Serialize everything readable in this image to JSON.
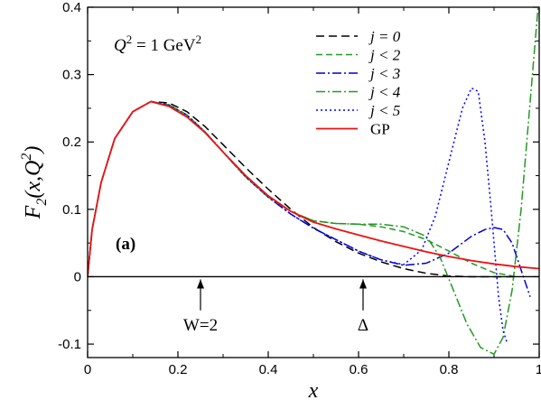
{
  "chart_data": {
    "type": "line",
    "xlabel": "x",
    "ylabel": "F2(x,Q2)",
    "ylabel_parts": {
      "main": "F",
      "sub2": "2",
      "open": "(x,Q",
      "sup2": "2",
      "close": ")"
    },
    "xlim": [
      0,
      1
    ],
    "ylim": [
      -0.12,
      0.4
    ],
    "xticks": [
      0,
      0.2,
      0.4,
      0.6,
      0.8,
      1
    ],
    "xtick_labels": [
      "0",
      "0.2",
      "0.4",
      "0.6",
      "0.8",
      "1"
    ],
    "yticks": [
      -0.1,
      0,
      0.1,
      0.2,
      0.3,
      0.4
    ],
    "ytick_labels": [
      "-0.1",
      "0",
      "0.1",
      "0.2",
      "0.3",
      "0.4"
    ],
    "q2_label": {
      "q": "Q",
      "sup": "2",
      "rest": " = 1 GeV",
      "sup2": "2"
    },
    "panel_label": "(a)",
    "legend_position": "top-right",
    "annotations": [
      {
        "text": "W=2",
        "x": 0.25
      },
      {
        "text": "Δ",
        "x": 0.61
      }
    ],
    "series": [
      {
        "name": "j = 0",
        "color": "#000000",
        "dash": "9,5",
        "x": [
          0,
          0.01,
          0.03,
          0.06,
          0.1,
          0.14,
          0.18,
          0.22,
          0.26,
          0.3,
          0.35,
          0.4,
          0.45,
          0.5,
          0.55,
          0.6,
          0.65,
          0.7,
          0.75,
          0.8,
          0.85,
          0.9,
          0.95
        ],
        "y": [
          0,
          0.07,
          0.14,
          0.205,
          0.245,
          0.26,
          0.258,
          0.245,
          0.223,
          0.196,
          0.162,
          0.13,
          0.1,
          0.073,
          0.052,
          0.035,
          0.022,
          0.012,
          0.005,
          0.001,
          0,
          0,
          0
        ]
      },
      {
        "name": "j < 2",
        "color": "#229922",
        "dash": "7,4",
        "x": [
          0,
          0.01,
          0.03,
          0.06,
          0.1,
          0.14,
          0.18,
          0.22,
          0.26,
          0.3,
          0.35,
          0.4,
          0.45,
          0.5,
          0.55,
          0.6,
          0.65,
          0.7,
          0.75,
          0.8,
          0.85,
          0.9,
          0.95
        ],
        "y": [
          0,
          0.07,
          0.14,
          0.205,
          0.245,
          0.26,
          0.255,
          0.24,
          0.215,
          0.185,
          0.148,
          0.118,
          0.097,
          0.083,
          0.079,
          0.078,
          0.074,
          0.067,
          0.055,
          0.038,
          0.02,
          0.006,
          0
        ]
      },
      {
        "name": "j < 3",
        "color": "#0000cc",
        "dash": "10,3,2,3",
        "x": [
          0,
          0.01,
          0.03,
          0.06,
          0.1,
          0.14,
          0.18,
          0.22,
          0.26,
          0.3,
          0.35,
          0.4,
          0.45,
          0.5,
          0.55,
          0.6,
          0.65,
          0.7,
          0.75,
          0.8,
          0.85,
          0.88,
          0.9,
          0.92,
          0.94,
          0.96,
          0.98
        ],
        "y": [
          0,
          0.07,
          0.14,
          0.205,
          0.245,
          0.26,
          0.255,
          0.24,
          0.215,
          0.185,
          0.148,
          0.118,
          0.093,
          0.072,
          0.055,
          0.038,
          0.025,
          0.017,
          0.02,
          0.035,
          0.06,
          0.07,
          0.073,
          0.07,
          0.05,
          0.01,
          -0.03
        ]
      },
      {
        "name": "j < 4",
        "color": "#229922",
        "dash": "10,3,2,3",
        "x": [
          0,
          0.01,
          0.03,
          0.06,
          0.1,
          0.14,
          0.18,
          0.22,
          0.26,
          0.3,
          0.35,
          0.4,
          0.45,
          0.5,
          0.55,
          0.6,
          0.65,
          0.7,
          0.75,
          0.78,
          0.81,
          0.84,
          0.87,
          0.9,
          0.92,
          0.94,
          0.96,
          0.98,
          1.0
        ],
        "y": [
          0,
          0.07,
          0.14,
          0.205,
          0.245,
          0.26,
          0.255,
          0.24,
          0.215,
          0.185,
          0.148,
          0.118,
          0.097,
          0.083,
          0.079,
          0.078,
          0.078,
          0.074,
          0.06,
          0.03,
          -0.02,
          -0.07,
          -0.105,
          -0.115,
          -0.09,
          -0.02,
          0.1,
          0.26,
          0.42
        ]
      },
      {
        "name": "j < 5",
        "color": "#0000ff",
        "dash": "2,3",
        "x": [
          0,
          0.01,
          0.03,
          0.06,
          0.1,
          0.14,
          0.18,
          0.22,
          0.26,
          0.3,
          0.35,
          0.4,
          0.45,
          0.5,
          0.55,
          0.6,
          0.65,
          0.7,
          0.74,
          0.77,
          0.8,
          0.83,
          0.85,
          0.865,
          0.88,
          0.895,
          0.91,
          0.92,
          0.93
        ],
        "y": [
          0,
          0.07,
          0.14,
          0.205,
          0.245,
          0.26,
          0.255,
          0.24,
          0.215,
          0.185,
          0.148,
          0.118,
          0.093,
          0.072,
          0.055,
          0.038,
          0.025,
          0.018,
          0.04,
          0.09,
          0.17,
          0.25,
          0.28,
          0.275,
          0.2,
          0.09,
          -0.03,
          -0.08,
          -0.1
        ]
      },
      {
        "name": "GP",
        "color": "#ee1111",
        "dash": "",
        "x": [
          0,
          0.01,
          0.03,
          0.06,
          0.1,
          0.14,
          0.18,
          0.22,
          0.26,
          0.3,
          0.35,
          0.4,
          0.45,
          0.5,
          0.55,
          0.6,
          0.65,
          0.7,
          0.75,
          0.8,
          0.85,
          0.9,
          0.95,
          1.0
        ],
        "y": [
          0,
          0.07,
          0.14,
          0.205,
          0.245,
          0.26,
          0.253,
          0.237,
          0.214,
          0.185,
          0.15,
          0.12,
          0.097,
          0.081,
          0.071,
          0.062,
          0.053,
          0.045,
          0.037,
          0.03,
          0.024,
          0.019,
          0.015,
          0.012
        ]
      }
    ]
  }
}
